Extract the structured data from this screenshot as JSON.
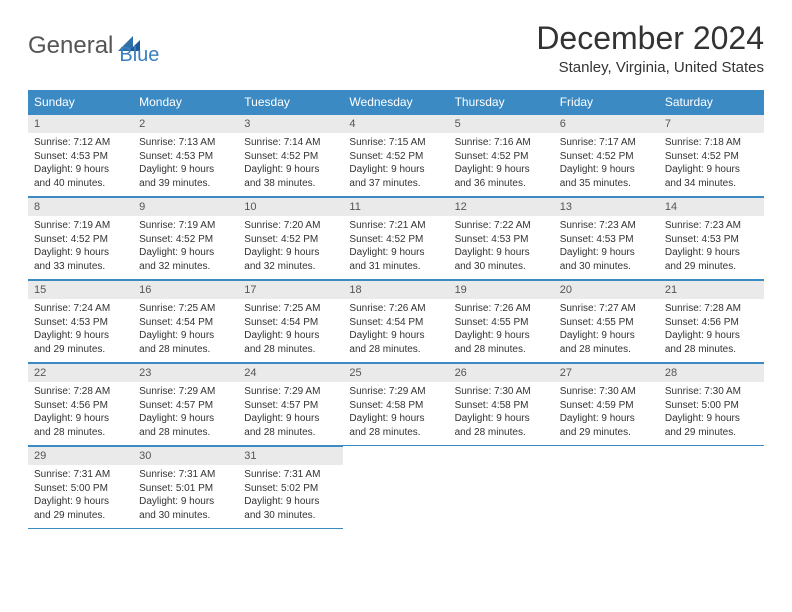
{
  "logo": {
    "part1": "General",
    "part2": "Blue"
  },
  "title": "December 2024",
  "location": "Stanley, Virginia, United States",
  "colors": {
    "header_bg": "#3b8ac4",
    "header_text": "#ffffff",
    "daynum_bg": "#eaeaea",
    "border": "#3b8ac4",
    "logo_blue": "#3b7fbf"
  },
  "dayNames": [
    "Sunday",
    "Monday",
    "Tuesday",
    "Wednesday",
    "Thursday",
    "Friday",
    "Saturday"
  ],
  "weeks": [
    [
      {
        "n": "1",
        "sr": "7:12 AM",
        "ss": "4:53 PM",
        "dl": "9 hours and 40 minutes."
      },
      {
        "n": "2",
        "sr": "7:13 AM",
        "ss": "4:53 PM",
        "dl": "9 hours and 39 minutes."
      },
      {
        "n": "3",
        "sr": "7:14 AM",
        "ss": "4:52 PM",
        "dl": "9 hours and 38 minutes."
      },
      {
        "n": "4",
        "sr": "7:15 AM",
        "ss": "4:52 PM",
        "dl": "9 hours and 37 minutes."
      },
      {
        "n": "5",
        "sr": "7:16 AM",
        "ss": "4:52 PM",
        "dl": "9 hours and 36 minutes."
      },
      {
        "n": "6",
        "sr": "7:17 AM",
        "ss": "4:52 PM",
        "dl": "9 hours and 35 minutes."
      },
      {
        "n": "7",
        "sr": "7:18 AM",
        "ss": "4:52 PM",
        "dl": "9 hours and 34 minutes."
      }
    ],
    [
      {
        "n": "8",
        "sr": "7:19 AM",
        "ss": "4:52 PM",
        "dl": "9 hours and 33 minutes."
      },
      {
        "n": "9",
        "sr": "7:19 AM",
        "ss": "4:52 PM",
        "dl": "9 hours and 32 minutes."
      },
      {
        "n": "10",
        "sr": "7:20 AM",
        "ss": "4:52 PM",
        "dl": "9 hours and 32 minutes."
      },
      {
        "n": "11",
        "sr": "7:21 AM",
        "ss": "4:52 PM",
        "dl": "9 hours and 31 minutes."
      },
      {
        "n": "12",
        "sr": "7:22 AM",
        "ss": "4:53 PM",
        "dl": "9 hours and 30 minutes."
      },
      {
        "n": "13",
        "sr": "7:23 AM",
        "ss": "4:53 PM",
        "dl": "9 hours and 30 minutes."
      },
      {
        "n": "14",
        "sr": "7:23 AM",
        "ss": "4:53 PM",
        "dl": "9 hours and 29 minutes."
      }
    ],
    [
      {
        "n": "15",
        "sr": "7:24 AM",
        "ss": "4:53 PM",
        "dl": "9 hours and 29 minutes."
      },
      {
        "n": "16",
        "sr": "7:25 AM",
        "ss": "4:54 PM",
        "dl": "9 hours and 28 minutes."
      },
      {
        "n": "17",
        "sr": "7:25 AM",
        "ss": "4:54 PM",
        "dl": "9 hours and 28 minutes."
      },
      {
        "n": "18",
        "sr": "7:26 AM",
        "ss": "4:54 PM",
        "dl": "9 hours and 28 minutes."
      },
      {
        "n": "19",
        "sr": "7:26 AM",
        "ss": "4:55 PM",
        "dl": "9 hours and 28 minutes."
      },
      {
        "n": "20",
        "sr": "7:27 AM",
        "ss": "4:55 PM",
        "dl": "9 hours and 28 minutes."
      },
      {
        "n": "21",
        "sr": "7:28 AM",
        "ss": "4:56 PM",
        "dl": "9 hours and 28 minutes."
      }
    ],
    [
      {
        "n": "22",
        "sr": "7:28 AM",
        "ss": "4:56 PM",
        "dl": "9 hours and 28 minutes."
      },
      {
        "n": "23",
        "sr": "7:29 AM",
        "ss": "4:57 PM",
        "dl": "9 hours and 28 minutes."
      },
      {
        "n": "24",
        "sr": "7:29 AM",
        "ss": "4:57 PM",
        "dl": "9 hours and 28 minutes."
      },
      {
        "n": "25",
        "sr": "7:29 AM",
        "ss": "4:58 PM",
        "dl": "9 hours and 28 minutes."
      },
      {
        "n": "26",
        "sr": "7:30 AM",
        "ss": "4:58 PM",
        "dl": "9 hours and 28 minutes."
      },
      {
        "n": "27",
        "sr": "7:30 AM",
        "ss": "4:59 PM",
        "dl": "9 hours and 29 minutes."
      },
      {
        "n": "28",
        "sr": "7:30 AM",
        "ss": "5:00 PM",
        "dl": "9 hours and 29 minutes."
      }
    ],
    [
      {
        "n": "29",
        "sr": "7:31 AM",
        "ss": "5:00 PM",
        "dl": "9 hours and 29 minutes."
      },
      {
        "n": "30",
        "sr": "7:31 AM",
        "ss": "5:01 PM",
        "dl": "9 hours and 30 minutes."
      },
      {
        "n": "31",
        "sr": "7:31 AM",
        "ss": "5:02 PM",
        "dl": "9 hours and 30 minutes."
      },
      null,
      null,
      null,
      null
    ]
  ],
  "labels": {
    "sunrise": "Sunrise:",
    "sunset": "Sunset:",
    "daylight": "Daylight:"
  }
}
